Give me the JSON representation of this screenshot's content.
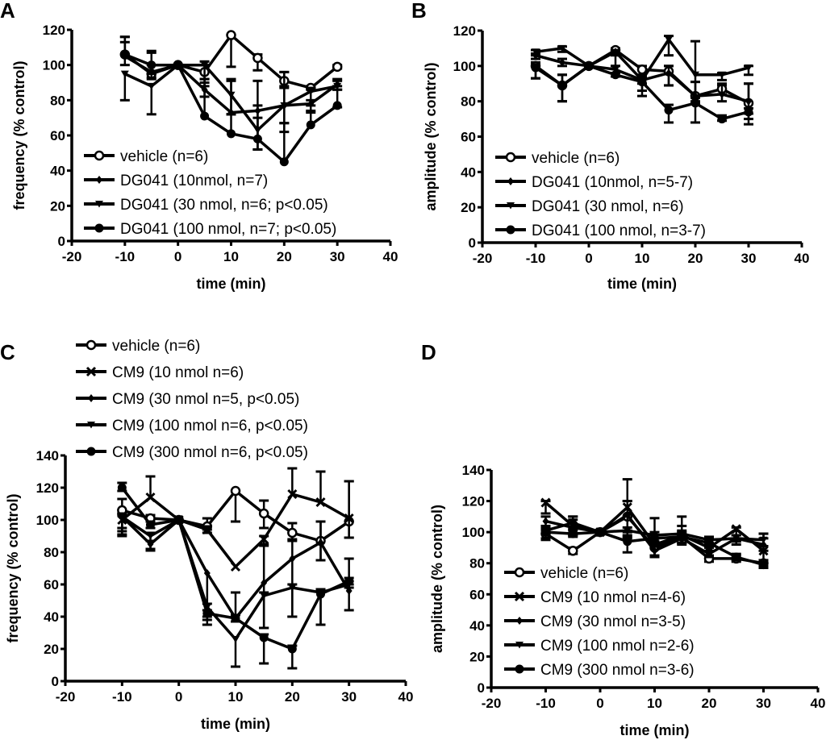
{
  "chart_data": [
    {
      "panel": "A",
      "type": "line",
      "title": "",
      "xlabel": "time (min)",
      "ylabel": "frequency (% control)",
      "xlim": [
        -20,
        40
      ],
      "ylim": [
        0,
        120
      ],
      "xticks": [
        -20,
        -10,
        0,
        10,
        20,
        30,
        40
      ],
      "yticks": [
        0,
        20,
        40,
        60,
        80,
        100,
        120
      ],
      "grid": false,
      "legend_position": "bottom-left",
      "x": [
        -10,
        -5,
        0,
        5,
        10,
        15,
        20,
        25,
        30
      ],
      "series": [
        {
          "name": "vehicle (n=6)",
          "marker": "open-circle",
          "values": [
            106,
            95,
            100,
            96,
            117,
            104,
            91,
            87,
            99
          ],
          "err_upper": [
            116,
            107,
            100,
            100,
            117,
            106,
            96,
            88,
            100
          ],
          "err_lower": [
            106,
            93,
            100,
            92,
            99,
            97,
            88,
            86,
            98
          ]
        },
        {
          "name": "DG041 (10nmol, n=7)",
          "marker": "diamond",
          "values": [
            105,
            96,
            100,
            86,
            73,
            74,
            77,
            78,
            89
          ],
          "err_upper": [
            113,
            100,
            100,
            92,
            91,
            91,
            96,
            80,
            92
          ],
          "err_lower": [
            105,
            92,
            100,
            82,
            72,
            52,
            62,
            73,
            86
          ]
        },
        {
          "name": "DG041 (30 nmol, n=6; p<0.05)",
          "marker": "down-triangle",
          "values": [
            95,
            88,
            100,
            100,
            83,
            63,
            77,
            85,
            88
          ],
          "err_upper": [
            95,
            88,
            100,
            102,
            92,
            77,
            87,
            87,
            91
          ],
          "err_lower": [
            80,
            72,
            100,
            88,
            72,
            52,
            67,
            77,
            86
          ]
        },
        {
          "name": "DG041 (100 nmol, n=7; p<0.05)",
          "marker": "filled-circle",
          "values": [
            106,
            100,
            100,
            71,
            61,
            58,
            45,
            66,
            77
          ],
          "err_upper": [
            116,
            108,
            100,
            90,
            72,
            70,
            67,
            74,
            88
          ],
          "err_lower": [
            100,
            95,
            100,
            71,
            61,
            52,
            45,
            66,
            76
          ]
        }
      ]
    },
    {
      "panel": "B",
      "type": "line",
      "title": "",
      "xlabel": "time (min)",
      "ylabel": "amplitude (% control)",
      "xlim": [
        -20,
        40
      ],
      "ylim": [
        0,
        120
      ],
      "xticks": [
        -20,
        -10,
        0,
        10,
        20,
        30,
        40
      ],
      "yticks": [
        0,
        20,
        40,
        60,
        80,
        100,
        120
      ],
      "grid": false,
      "legend_position": "bottom-left",
      "x": [
        -10,
        -5,
        0,
        5,
        10,
        15,
        20,
        25,
        30
      ],
      "series": [
        {
          "name": "vehicle (n=6)",
          "marker": "open-circle",
          "values": [
            100,
            89,
            100,
            109,
            98,
            97,
            83,
            87,
            79
          ],
          "err_upper": [
            102,
            95,
            100,
            110,
            100,
            100,
            91,
            89,
            90
          ],
          "err_lower": [
            93,
            80,
            100,
            106,
            95,
            89,
            80,
            84,
            73
          ]
        },
        {
          "name": "DG041 (10nmol, n=5-7)",
          "marker": "diamond",
          "values": [
            106,
            102,
            100,
            108,
            92,
            96,
            83,
            84,
            80
          ],
          "err_upper": [
            107,
            104,
            100,
            109,
            94,
            100,
            91,
            90,
            90
          ],
          "err_lower": [
            104,
            100,
            100,
            100,
            86,
            89,
            79,
            80,
            70
          ]
        },
        {
          "name": "DG041 (30 nmol, n=6)",
          "marker": "down-triangle",
          "values": [
            108,
            110,
            100,
            98,
            92,
            115,
            95,
            95,
            99
          ],
          "err_upper": [
            109,
            111,
            100,
            100,
            95,
            117,
            114,
            96,
            100
          ],
          "err_lower": [
            106,
            108,
            100,
            96,
            90,
            106,
            91,
            92,
            95
          ]
        },
        {
          "name": "DG041 (100 nmol, n=3-7)",
          "marker": "filled-circle",
          "values": [
            99,
            89,
            100,
            95,
            91,
            75,
            79,
            70,
            74
          ],
          "err_upper": [
            101,
            95,
            100,
            96,
            94,
            78,
            82,
            72,
            76
          ],
          "err_lower": [
            93,
            80,
            100,
            94,
            83,
            68,
            68,
            69,
            67
          ]
        }
      ]
    },
    {
      "panel": "C",
      "type": "line",
      "title": "",
      "xlabel": "time (min)",
      "ylabel": "frequency (% control)",
      "xlim": [
        -20,
        40
      ],
      "ylim": [
        0,
        140
      ],
      "xticks": [
        -20,
        -10,
        0,
        10,
        20,
        30,
        40
      ],
      "yticks": [
        0,
        20,
        40,
        60,
        80,
        100,
        120,
        140
      ],
      "grid": false,
      "legend_position": "top-left (above plot)",
      "x": [
        -10,
        -5,
        0,
        5,
        10,
        15,
        20,
        25,
        30
      ],
      "series": [
        {
          "name": "vehicle (n=6)",
          "marker": "open-circle",
          "values": [
            106,
            101,
            100,
            96,
            118,
            104,
            92,
            87,
            99
          ],
          "err_upper": [
            113,
            103,
            100,
            101,
            118,
            112,
            98,
            99,
            124
          ],
          "err_lower": [
            93,
            99,
            100,
            94,
            99,
            95,
            88,
            75,
            89
          ]
        },
        {
          "name": "CM9 (10 nmol n=6)",
          "marker": "x-cross",
          "values": [
            100,
            114,
            100,
            94,
            71,
            88,
            116,
            111,
            101
          ],
          "err_upper": [
            103,
            127,
            100,
            96,
            71,
            90,
            132,
            130,
            124
          ],
          "err_lower": [
            90,
            114,
            100,
            92,
            71,
            84,
            116,
            111,
            89
          ]
        },
        {
          "name": "CM9 (30 nmol n=5, p<0.05)",
          "marker": "diamond",
          "values": [
            102,
            85,
            100,
            67,
            39,
            61,
            76,
            86,
            56
          ],
          "err_upper": [
            104,
            87,
            100,
            67,
            55,
            85,
            87,
            99,
            76
          ],
          "err_lower": [
            91,
            81,
            100,
            40,
            39,
            33,
            40,
            75,
            44
          ]
        },
        {
          "name": "CM9 (100 nmol n=6, p<0.05)",
          "marker": "down-triangle",
          "values": [
            102,
            90,
            100,
            46,
            26,
            53,
            58,
            55,
            60
          ],
          "err_upper": [
            104,
            92,
            100,
            48,
            26,
            55,
            60,
            57,
            62
          ],
          "err_lower": [
            95,
            82,
            100,
            38,
            9,
            33,
            40,
            35,
            58
          ]
        },
        {
          "name": "CM9 (300 nmol n=6, p<0.05)",
          "marker": "filled-circle",
          "values": [
            120,
            97,
            100,
            42,
            39,
            27,
            20,
            54,
            62
          ],
          "err_upper": [
            123,
            99,
            100,
            44,
            41,
            29,
            22,
            56,
            64
          ],
          "err_lower": [
            118,
            95,
            100,
            35,
            37,
            11,
            8,
            35,
            60
          ]
        }
      ]
    },
    {
      "panel": "D",
      "type": "line",
      "title": "",
      "xlabel": "time (min)",
      "ylabel": "amplitude (% control)",
      "xlim": [
        -20,
        40
      ],
      "ylim": [
        0,
        140
      ],
      "xticks": [
        -20,
        -10,
        0,
        10,
        20,
        30,
        40
      ],
      "yticks": [
        0,
        20,
        40,
        60,
        80,
        100,
        120,
        140
      ],
      "grid": false,
      "legend_position": "bottom-left",
      "x": [
        -10,
        -5,
        0,
        5,
        10,
        15,
        20,
        25,
        30
      ],
      "series": [
        {
          "name": "vehicle (n=6)",
          "marker": "open-circle",
          "values": [
            99,
            88,
            100,
            110,
            90,
            97,
            83,
            83,
            80
          ],
          "err_upper": [
            101,
            90,
            100,
            120,
            92,
            104,
            85,
            85,
            82
          ],
          "err_lower": [
            95,
            86,
            100,
            100,
            84,
            93,
            81,
            81,
            78
          ]
        },
        {
          "name": "CM9 (10 nmol n=4-6)",
          "marker": "x-cross",
          "values": [
            119,
            104,
            100,
            116,
            92,
            98,
            90,
            102,
            88
          ],
          "err_upper": [
            120,
            110,
            100,
            134,
            109,
            110,
            96,
            103,
            99
          ],
          "err_lower": [
            112,
            98,
            100,
            98,
            84,
            93,
            88,
            92,
            80
          ]
        },
        {
          "name": "CM9 (30 nmol n=3-5)",
          "marker": "diamond",
          "values": [
            107,
            103,
            100,
            111,
            88,
            96,
            86,
            96,
            92
          ],
          "err_upper": [
            110,
            108,
            100,
            120,
            92,
            100,
            90,
            98,
            96
          ],
          "err_lower": [
            104,
            98,
            100,
            101,
            85,
            92,
            84,
            94,
            88
          ]
        },
        {
          "name": "CM9 (100 nmol n=2-6)",
          "marker": "down-triangle",
          "values": [
            101,
            106,
            100,
            101,
            98,
            99,
            95,
            96,
            95
          ],
          "err_upper": [
            103,
            110,
            100,
            103,
            100,
            101,
            97,
            98,
            99
          ],
          "err_lower": [
            99,
            102,
            100,
            97,
            96,
            97,
            93,
            94,
            91
          ]
        },
        {
          "name": "CM9 (300 nmol n=3-6)",
          "marker": "filled-circle",
          "values": [
            100,
            99,
            100,
            94,
            96,
            97,
            93,
            84,
            79
          ],
          "err_upper": [
            102,
            101,
            100,
            96,
            98,
            99,
            95,
            86,
            81
          ],
          "err_lower": [
            96,
            97,
            100,
            87,
            94,
            95,
            91,
            82,
            77
          ]
        }
      ]
    }
  ],
  "panels": {
    "A": {
      "letter": "A"
    },
    "B": {
      "letter": "B"
    },
    "C": {
      "letter": "C"
    },
    "D": {
      "letter": "D"
    }
  }
}
